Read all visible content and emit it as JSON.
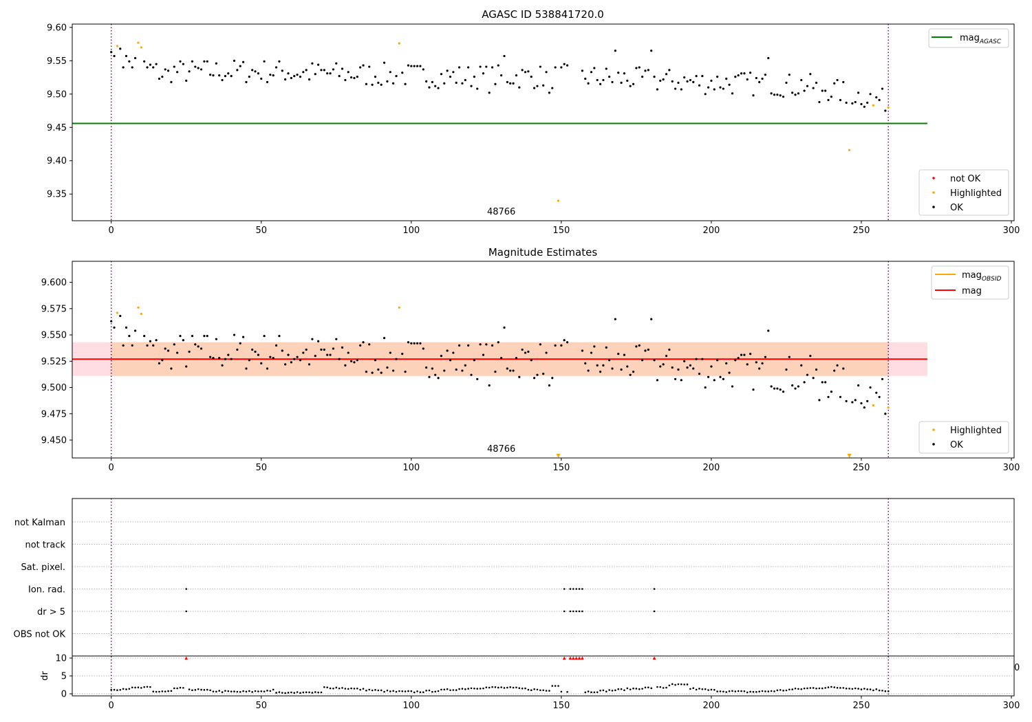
{
  "chart_data": [
    {
      "type": "scatter",
      "title": "AGASC ID 538841720.0",
      "xlim": [
        -13,
        300
      ],
      "ylim": [
        9.31,
        9.605
      ],
      "x_ticks": [
        "0",
        "50",
        "100",
        "150",
        "200",
        "250",
        "300"
      ],
      "y_ticks": [
        "9.35",
        "9.40",
        "9.45",
        "9.50",
        "9.55",
        "9.60"
      ],
      "obsid_label": "48766",
      "obsid_label_x": 130,
      "vlines": [
        0,
        259
      ],
      "hline": {
        "name_main": "mag",
        "name_sub": "AGASC",
        "value": 9.456,
        "color": "#008000",
        "xmax": 272
      },
      "legend_top": [
        {
          "label_main": "mag",
          "label_sub": "AGASC",
          "color": "#008000",
          "kind": "line"
        }
      ],
      "legend_bottom": [
        {
          "label": "not OK",
          "color": "#ff0000",
          "kind": "dot"
        },
        {
          "label": "Highlighted",
          "color": "#ffa500",
          "kind": "dot"
        },
        {
          "label": "OK",
          "color": "#000000",
          "kind": "dot"
        }
      ],
      "series": [
        {
          "name": "Highlighted",
          "color": "#ffa500",
          "x": [
            2,
            9,
            10,
            96,
            149,
            246,
            254,
            259
          ],
          "y": [
            9.572,
            9.577,
            9.57,
            9.576,
            9.34,
            9.416,
            9.483,
            9.48
          ]
        },
        {
          "name": "OK",
          "color": "#000000"
        }
      ]
    },
    {
      "type": "scatter",
      "title": "Magnitude Estimates",
      "xlim": [
        -13,
        300
      ],
      "ylim": [
        9.433,
        9.62
      ],
      "x_ticks": [
        "0",
        "50",
        "100",
        "150",
        "200",
        "250",
        "300"
      ],
      "y_ticks": [
        "9.450",
        "9.475",
        "9.500",
        "9.525",
        "9.550",
        "9.575",
        "9.600"
      ],
      "obsid_label": "48766",
      "obsid_label_x": 130,
      "vlines": [
        0,
        259
      ],
      "bands": [
        {
          "y0": 9.511,
          "y1": 9.543,
          "x0": -13,
          "x1": 272,
          "color": "#ffdde2"
        },
        {
          "y0": 9.511,
          "y1": 9.543,
          "x0": 0,
          "x1": 259,
          "color": "#fdd2bb"
        }
      ],
      "lines": [
        {
          "name": "mag",
          "value": 9.527,
          "color": "#ff0000",
          "xmax": 272
        },
        {
          "name": "mag_OBSID",
          "value": 9.527,
          "color": "#ffa500",
          "xmin": 0,
          "xmax": 259
        }
      ],
      "legend_top": [
        {
          "label_main": "mag",
          "label_sub": "OBSID",
          "color": "#ffa500",
          "kind": "line"
        },
        {
          "label_main": "mag",
          "label_sub": "",
          "color": "#ff0000",
          "kind": "line"
        }
      ],
      "legend_bottom": [
        {
          "label": "Highlighted",
          "color": "#ffa500",
          "kind": "dot"
        },
        {
          "label": "OK",
          "color": "#000000",
          "kind": "dot"
        }
      ],
      "series": [
        {
          "name": "Highlighted",
          "color": "#ffa500",
          "x": [
            2,
            9,
            10,
            96,
            254,
            259
          ],
          "y": [
            9.571,
            9.576,
            9.57,
            9.576,
            9.483,
            9.481
          ]
        },
        {
          "name": "OK",
          "color": "#000000"
        },
        {
          "name": "Highlighted (off-scale)",
          "color": "#ffa500",
          "marker": "triangle-down",
          "x": [
            149,
            246
          ],
          "y": [
            9.435,
            9.435
          ]
        }
      ]
    },
    {
      "type": "scatter",
      "title": "",
      "xlim": [
        -13,
        300
      ],
      "x_ticks": [
        "0",
        "50",
        "100",
        "150",
        "200",
        "250",
        "300"
      ],
      "vlines": [
        0,
        259
      ],
      "flag_rows": [
        "not Kalman",
        "not track",
        "Sat. pixel.",
        "Ion. rad.",
        "dr > 5",
        "OBS not OK"
      ],
      "flags": [
        {
          "row": "Ion. rad.",
          "x": [
            25,
            151,
            153,
            154,
            155,
            156,
            157,
            181
          ]
        },
        {
          "row": "dr > 5",
          "x": [
            25,
            151,
            153,
            154,
            155,
            156,
            157,
            181
          ]
        }
      ],
      "dr": {
        "ylabel": "dr",
        "y_ticks": [
          "0",
          "5",
          "10"
        ],
        "ylim": [
          0,
          10
        ],
        "clipped_marker_color": "#ff0000",
        "clipped_x": [
          25,
          151,
          153,
          154,
          155,
          156,
          157,
          181
        ],
        "stray_label": "0"
      }
    }
  ]
}
